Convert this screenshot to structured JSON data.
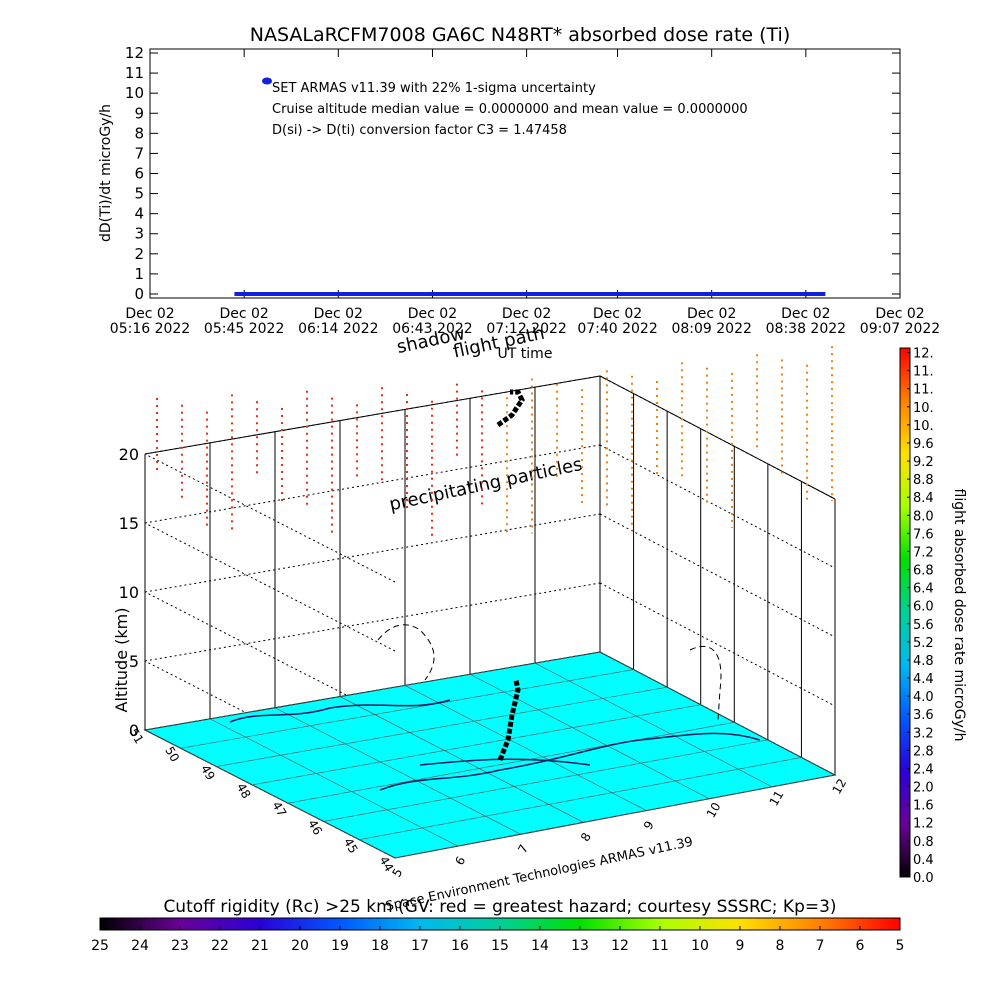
{
  "chart_data": [
    {
      "type": "line",
      "title": "NASALaRCFM7008  GA6C N48RT* absorbed dose rate (Ti)",
      "ylabel": "dD(Ti)/dt microGy/h",
      "xlabel": "UT time",
      "xlim": [
        "2022-12-02T05:16",
        "2022-12-02T09:07"
      ],
      "xticks": [
        {
          "value": "2022-12-02T05:16",
          "label": "Dec 02\n05:16 2022"
        },
        {
          "value": "2022-12-02T05:45",
          "label": "Dec 02\n05:45 2022"
        },
        {
          "value": "2022-12-02T06:14",
          "label": "Dec 02\n06:14 2022"
        },
        {
          "value": "2022-12-02T06:43",
          "label": "Dec 02\n06:43 2022"
        },
        {
          "value": "2022-12-02T07:12",
          "label": "Dec 02\n07:12 2022"
        },
        {
          "value": "2022-12-02T07:40",
          "label": "Dec 02\n07:40 2022"
        },
        {
          "value": "2022-12-02T08:09",
          "label": "Dec 02\n08:09 2022"
        },
        {
          "value": "2022-12-02T08:38",
          "label": "Dec 02\n08:38 2022"
        },
        {
          "value": "2022-12-02T09:07",
          "label": "Dec 02\n09:07 2022"
        }
      ],
      "ylim": [
        -0.2,
        12.2
      ],
      "yticks": [
        0,
        1,
        2,
        3,
        4,
        5,
        6,
        7,
        8,
        9,
        10,
        11,
        12
      ],
      "series": [
        {
          "name": "SET ARMAS v11.39 with 22% 1-sigma uncertainty",
          "color": "#1020e0",
          "x": [
            "2022-12-02T05:42",
            "2022-12-02T05:48",
            "2022-12-02T05:54",
            "2022-12-02T06:00",
            "2022-12-02T06:06",
            "2022-12-02T06:12",
            "2022-12-02T06:18",
            "2022-12-02T06:24",
            "2022-12-02T06:30",
            "2022-12-02T06:36",
            "2022-12-02T06:42",
            "2022-12-02T06:48",
            "2022-12-02T06:54",
            "2022-12-02T07:00",
            "2022-12-02T07:06",
            "2022-12-02T07:12",
            "2022-12-02T07:18",
            "2022-12-02T07:24",
            "2022-12-02T07:30",
            "2022-12-02T07:36",
            "2022-12-02T07:42",
            "2022-12-02T07:48",
            "2022-12-02T07:54",
            "2022-12-02T08:00",
            "2022-12-02T08:06",
            "2022-12-02T08:12",
            "2022-12-02T08:18",
            "2022-12-02T08:24",
            "2022-12-02T08:30",
            "2022-12-02T08:36",
            "2022-12-02T08:44"
          ],
          "values": [
            0,
            0,
            0,
            0,
            0,
            0,
            0,
            0,
            0,
            0,
            0,
            0,
            0,
            0,
            0,
            0,
            0,
            0,
            0,
            0,
            0,
            0,
            0,
            0,
            0,
            0,
            0,
            0,
            0,
            0,
            0
          ]
        }
      ],
      "annotations": [
        "Cruise altitude median value = 0.0000000 and mean value = 0.0000000",
        "D(si) -> D(ti) conversion factor C3 = 1.47458"
      ]
    },
    {
      "type": "surface3d",
      "zlabel": "Altitude (km)",
      "zlim": [
        0,
        20
      ],
      "zticks": [
        0,
        5,
        10,
        15,
        20
      ],
      "ylim": [
        44,
        51
      ],
      "yticks": [
        44,
        45,
        46,
        47,
        48,
        49,
        50,
        51
      ],
      "xlim": [
        5,
        12
      ],
      "xticks": [
        5,
        6,
        7,
        8,
        9,
        10,
        11,
        12
      ],
      "floor_color": "#00ffff",
      "annotations": [
        "flight path",
        "shadow",
        "precipitating particles"
      ],
      "footer": "Space Environment Technologies ARMAS v11.39",
      "colorbar": {
        "title": "flight absorbed dose rate microGy/h",
        "lim": [
          0,
          11.7
        ],
        "ticks": [
          {
            "value": 0,
            "label": "0.0"
          },
          0.4,
          0.8,
          1.2,
          1.6,
          {
            "value": 2,
            "label": "2.0"
          },
          2.4,
          2.8,
          3.2,
          3.6,
          {
            "value": 4,
            "label": "4.0"
          },
          4.4,
          4.8,
          5.2,
          5.6,
          {
            "value": 6,
            "label": "6.0"
          },
          6.4,
          6.8,
          7.2,
          7.6,
          {
            "value": 8,
            "label": "8.0"
          },
          8.4,
          8.8,
          9.2,
          9.6,
          {
            "value": 10,
            "label": "10."
          },
          {
            "value": 10.4,
            "label": "10."
          },
          {
            "value": 10.8,
            "label": "11."
          },
          {
            "value": 11.2,
            "label": "11."
          },
          {
            "value": 11.6,
            "label": "12."
          }
        ]
      },
      "rigidity_colorbar": {
        "title": "Cutoff rigidity (Rc) >25 km (GV: red = greatest hazard; courtesy SSSRC; Kp=3)",
        "lim": [
          25,
          5
        ],
        "ticks": [
          25,
          24,
          23,
          22,
          21,
          20,
          19,
          18,
          17,
          16,
          15,
          14,
          13,
          12,
          11,
          10,
          9,
          8,
          7,
          6,
          5
        ]
      }
    }
  ]
}
